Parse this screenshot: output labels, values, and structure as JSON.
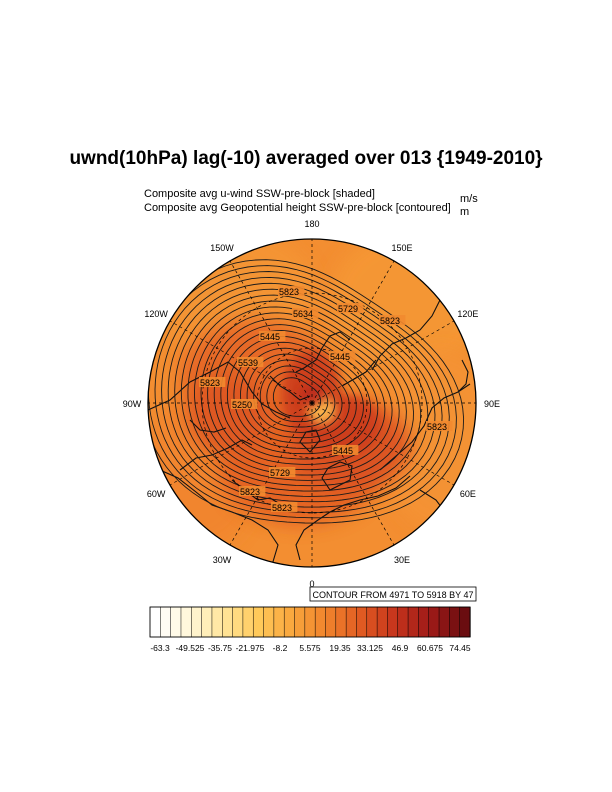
{
  "chart_data": {
    "type": "heatmap",
    "title": "uwnd(10hPa) lag(-10) averaged over 013 {1949-2010}",
    "shaded_label": "Composite avg u-wind SSW-pre-block [shaded]",
    "shaded_units": "m/s",
    "contour_label": "Composite avg Geopotential height SSW-pre-block [contoured]",
    "contour_units": "m",
    "projection": "north polar stereographic",
    "longitude_labels": [
      "180",
      "150E",
      "120E",
      "90E",
      "60E",
      "30E",
      "0",
      "30W",
      "60W",
      "90W",
      "120W",
      "150W"
    ],
    "contour_info": "CONTOUR FROM 4971 TO 5918 BY 47",
    "contour_min": 4971,
    "contour_max": 5918,
    "contour_interval": 47,
    "contour_line_labels": [
      "5823",
      "5729",
      "5823",
      "5634",
      "5445",
      "5445",
      "5539",
      "5250",
      "5823",
      "5445",
      "5729",
      "5823",
      "5823",
      "5823"
    ],
    "colorbar_labels": [
      "-63.3",
      "-49.525",
      "-35.75",
      "-21.975",
      "-8.2",
      "5.575",
      "19.35",
      "33.125",
      "46.9",
      "60.675",
      "74.45"
    ],
    "colorbar_min": -63.3,
    "colorbar_max": 74.45,
    "colorbar_levels": 31,
    "colors": {
      "scale": [
        "#ffffff",
        "#fff6d8",
        "#ffe59a",
        "#ffc95a",
        "#f8a53c",
        "#f0822c",
        "#e05a22",
        "#c5331c",
        "#9e1a18",
        "#6a0d10"
      ],
      "coast": "#111111",
      "contour": "#1a1a1a"
    }
  }
}
